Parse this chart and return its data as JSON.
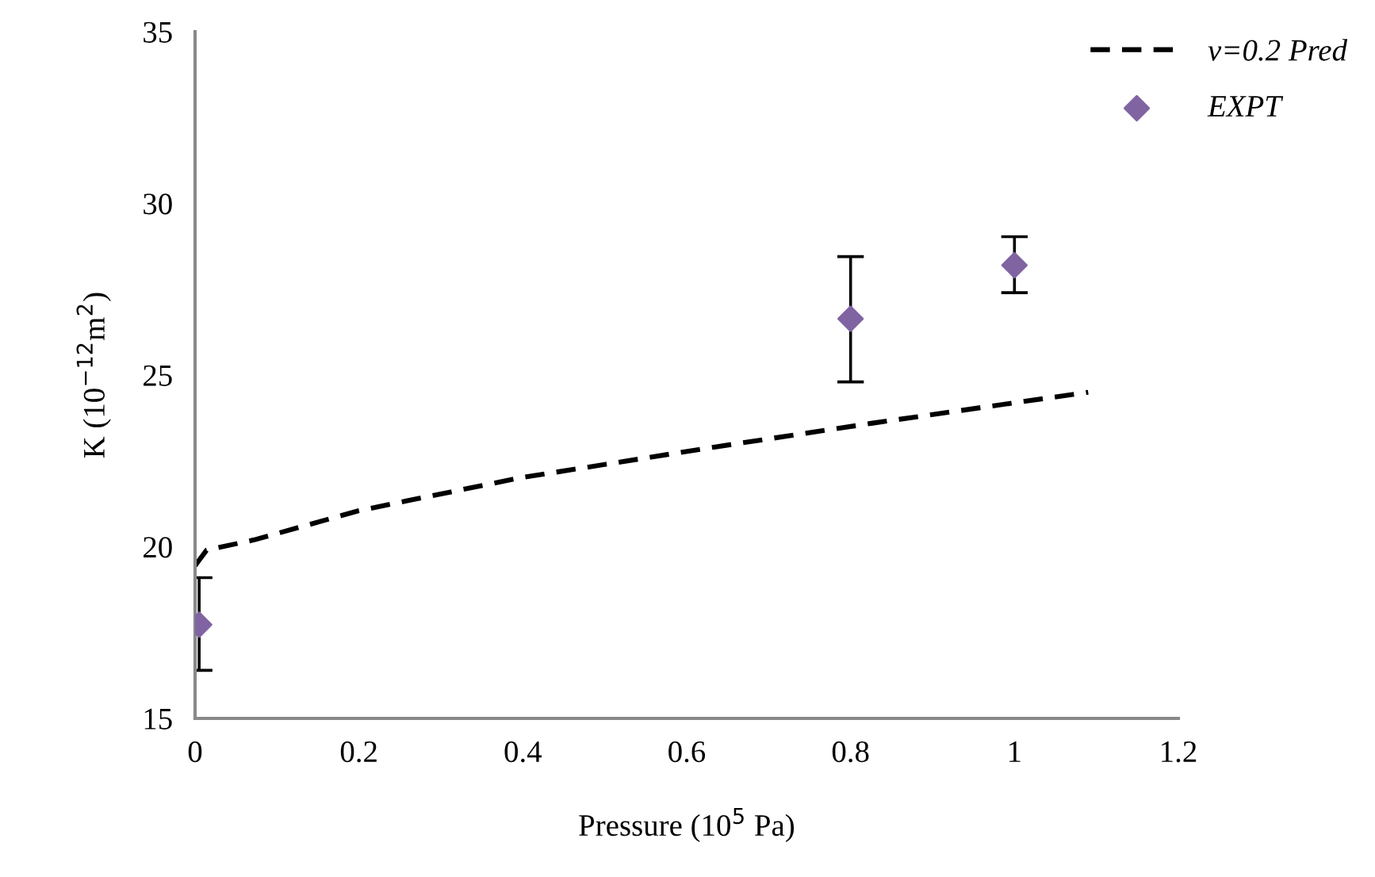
{
  "chart_data": {
    "type": "scatter",
    "xlabel": "Pressure (10$^{5}$ Pa)",
    "ylabel": "K (10$^{−12}$m$^{2}$)",
    "xlim": [
      0,
      1.2
    ],
    "xticks": [
      0,
      0.2,
      0.4,
      0.6,
      0.8,
      1,
      1.2
    ],
    "ylim": [
      15,
      35
    ],
    "yticks": [
      15,
      20,
      25,
      30,
      35
    ],
    "grid": false,
    "legend": "top right",
    "series": [
      {
        "name": "v=0.2 Pred",
        "type": "line",
        "color": "#000000",
        "line_style": "dashed",
        "marker": "none",
        "x": [
          0,
          0.014,
          0.072,
          0.2,
          0.395,
          0.633,
          0.827,
          1.09
        ],
        "values": [
          19.45,
          19.9,
          20.2,
          21.05,
          22.0,
          22.9,
          23.6,
          24.5
        ]
      },
      {
        "name": "EXPT",
        "color": "#8064a2",
        "marker": "diamond",
        "x": [
          0.005,
          0.8,
          1.0
        ],
        "values": [
          17.73,
          26.64,
          28.2
        ],
        "errors": [
          [
            16.4,
            19.1
          ],
          [
            24.8,
            28.45
          ],
          [
            27.4,
            29.03
          ]
        ]
      }
    ]
  }
}
